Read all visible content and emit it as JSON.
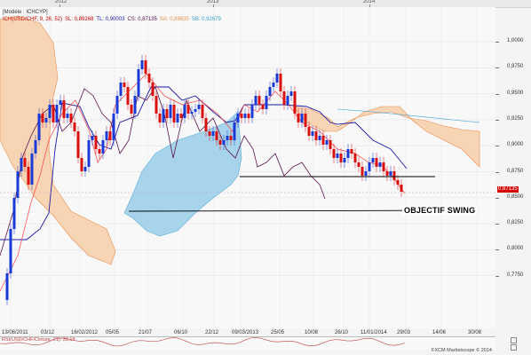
{
  "top_axis": {
    "years": [
      "2012",
      "2013",
      "2014"
    ]
  },
  "legend": {
    "line1": "[Modèle : ICHCYP]",
    "items": [
      {
        "text": "ICH(USD/CHF, 9, 26, 52)",
        "color": "#cc0000"
      },
      {
        "text": "SL: 0,89268",
        "color": "#cc0000"
      },
      {
        "text": "TL: 0,90003",
        "color": "#1a1aa8"
      },
      {
        "text": "CS: 0,87135",
        "color": "#5a1450"
      },
      {
        "text": "SA: 0,89635",
        "color": "#e89050"
      },
      {
        "text": "SB: 0,92679",
        "color": "#3aa0cc"
      }
    ]
  },
  "price_badge": "0,87135",
  "y_labels": [
    "1,0000",
    "0,9750",
    "0,9500",
    "0,9250",
    "0,9000",
    "0,8750",
    "0,8500",
    "0,8250",
    "0,8000",
    "0,7750"
  ],
  "x_labels": [
    "13/08/2011",
    "03/12",
    "16/02/2012",
    "05/05",
    "21/07",
    "06/10",
    "22/12",
    "09/03/2013",
    "25/05",
    "10/08",
    "26/10",
    "11/01/2014",
    "29/03",
    "14/06",
    "30/08"
  ],
  "annotation": "OBJECTIF SWING",
  "rsi": {
    "label": "RSI(USD/CHF/Cloture, 21): 39,18",
    "y_label": ""
  },
  "copyright": "FXCM Marketscope © 2014",
  "colors": {
    "up_candle": "#1a3ad8",
    "down_candle": "#d81010",
    "kijun": "#1a1aa8",
    "tenkan": "#ff4040",
    "chikou": "#5a1450",
    "cloud_bull": "#f7d4b4",
    "cloud_bear": "#a7d4ea",
    "span_a": "#e89050",
    "span_b": "#5ab0d8"
  },
  "chart_data": {
    "type": "candlestick",
    "title": "",
    "xlabel": "",
    "ylabel": "",
    "ylim": [
      0.765,
      1.02
    ],
    "x": [],
    "values": []
  }
}
